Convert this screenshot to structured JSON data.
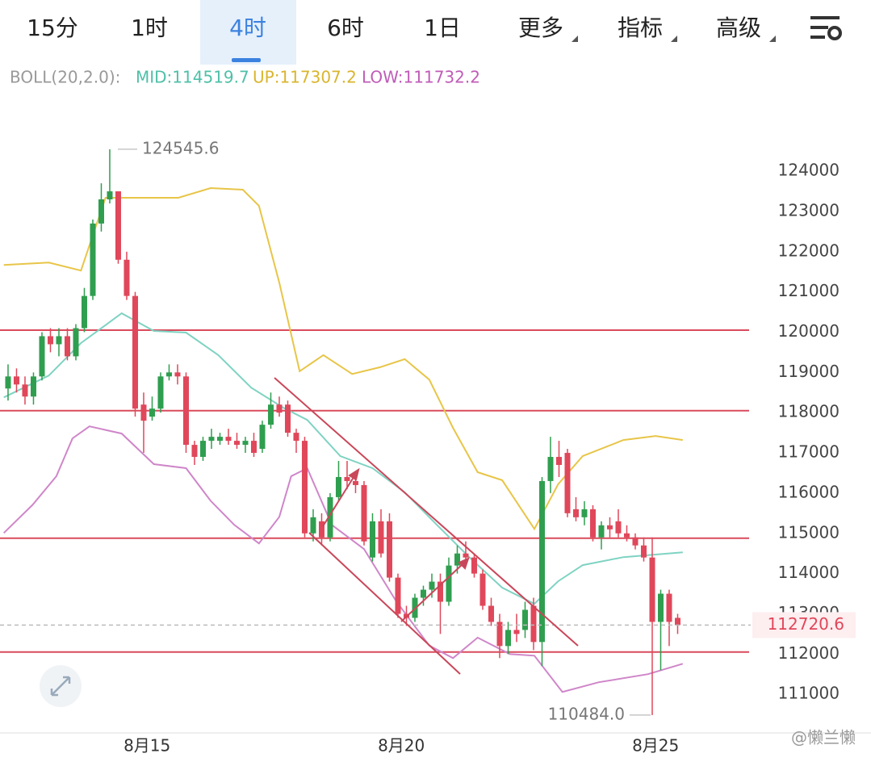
{
  "tabs": [
    "15分",
    "1时",
    "4时",
    "6时",
    "1日",
    "更多",
    "指标",
    "高级"
  ],
  "active_tab": 2,
  "legend": {
    "label": "BOLL(20,2.0):",
    "mid": "MID:114519.7",
    "up": "UP:117307.2",
    "low": "LOW:111732.2"
  },
  "watermark": "@懒兰懒",
  "chart_data": {
    "type": "candlestick",
    "up_color": "#2f9e4f",
    "down_color": "#e0475a",
    "xlim": [
      -0.95,
      87.43
    ],
    "xticks": [
      {
        "value": 16.4,
        "label": "8月15"
      },
      {
        "value": 46.4,
        "label": "8月20"
      },
      {
        "value": 76.4,
        "label": "8月25"
      }
    ],
    "ylim": [
      110000,
      126650
    ],
    "yticks": [
      124000,
      123000,
      122000,
      121000,
      120000,
      119000,
      118000,
      117000,
      116000,
      115000,
      114000,
      113000,
      112000,
      111000
    ],
    "candles": [
      [
        118600,
        119200,
        118300,
        118900
      ],
      [
        118900,
        119100,
        118500,
        118700
      ],
      [
        118700,
        118900,
        118200,
        118400
      ],
      [
        118400,
        119000,
        118200,
        118900
      ],
      [
        118900,
        120000,
        118800,
        119900
      ],
      [
        119900,
        120100,
        119500,
        119700
      ],
      [
        119700,
        120100,
        119400,
        119900
      ],
      [
        119900,
        120100,
        119300,
        119400
      ],
      [
        119400,
        120200,
        119300,
        120100
      ],
      [
        120100,
        121100,
        120000,
        120900
      ],
      [
        120900,
        122800,
        120800,
        122700
      ],
      [
        122700,
        123700,
        122500,
        123300
      ],
      [
        123300,
        124545.6,
        123200,
        123500
      ],
      [
        123500,
        123500,
        121700,
        121800
      ],
      [
        121800,
        122000,
        120800,
        120900
      ],
      [
        120900,
        121000,
        117900,
        118100
      ],
      [
        118200,
        118500,
        117000,
        117800
      ],
      [
        117900,
        118400,
        117800,
        118100
      ],
      [
        118100,
        119000,
        118000,
        118900
      ],
      [
        118900,
        119200,
        118800,
        119000
      ],
      [
        119000,
        119200,
        118700,
        118900
      ],
      [
        118900,
        119000,
        117000,
        117200
      ],
      [
        117200,
        117300,
        116700,
        116900
      ],
      [
        116900,
        117400,
        116800,
        117300
      ],
      [
        117300,
        117600,
        117100,
        117400
      ],
      [
        117300,
        117500,
        117200,
        117400
      ],
      [
        117400,
        117600,
        117200,
        117300
      ],
      [
        117300,
        117500,
        117100,
        117200
      ],
      [
        117200,
        117400,
        117000,
        117300
      ],
      [
        117300,
        117500,
        116900,
        117000
      ],
      [
        117100,
        117800,
        117000,
        117700
      ],
      [
        117700,
        118500,
        117600,
        118200
      ],
      [
        118200,
        118400,
        117900,
        118000
      ],
      [
        118200,
        118300,
        117400,
        117500
      ],
      [
        117500,
        117600,
        117000,
        117300
      ],
      [
        117300,
        117400,
        114900,
        115000
      ],
      [
        115000,
        115600,
        114800,
        115400
      ],
      [
        115300,
        115500,
        114700,
        114900
      ],
      [
        114900,
        116000,
        114800,
        115900
      ],
      [
        115900,
        116800,
        115800,
        116400
      ],
      [
        116400,
        116800,
        116100,
        116300
      ],
      [
        116300,
        116500,
        116000,
        116200
      ],
      [
        116200,
        116300,
        114700,
        114800
      ],
      [
        114400,
        115500,
        114300,
        115300
      ],
      [
        115300,
        115600,
        114400,
        114500
      ],
      [
        115300,
        115500,
        113800,
        113900
      ],
      [
        113900,
        114000,
        112900,
        113000
      ],
      [
        113000,
        113200,
        112700,
        112900
      ],
      [
        112900,
        113500,
        112800,
        113400
      ],
      [
        113400,
        113700,
        113200,
        113600
      ],
      [
        113600,
        114000,
        113400,
        113800
      ],
      [
        113800,
        114000,
        112500,
        113300
      ],
      [
        113300,
        114400,
        113200,
        114200
      ],
      [
        114200,
        114700,
        114000,
        114500
      ],
      [
        114500,
        114800,
        114200,
        114400
      ],
      [
        114400,
        114500,
        113900,
        114000
      ],
      [
        114000,
        114100,
        113100,
        113200
      ],
      [
        113200,
        113400,
        112700,
        112800
      ],
      [
        112800,
        113000,
        111900,
        112200
      ],
      [
        112200,
        112800,
        112000,
        112600
      ],
      [
        112600,
        113000,
        112300,
        112500
      ],
      [
        112600,
        113300,
        112400,
        113100
      ],
      [
        113200,
        113400,
        112100,
        112300
      ],
      [
        112300,
        116400,
        111700,
        116300
      ],
      [
        116300,
        117400,
        116000,
        116900
      ],
      [
        116900,
        117300,
        116400,
        116700
      ],
      [
        117000,
        117100,
        115400,
        115500
      ],
      [
        115600,
        115900,
        115300,
        115400
      ],
      [
        115400,
        115800,
        115200,
        115600
      ],
      [
        115600,
        115700,
        114800,
        114900
      ],
      [
        114900,
        115300,
        114600,
        115200
      ],
      [
        115200,
        115400,
        114900,
        115100
      ],
      [
        115300,
        115600,
        114900,
        115000
      ],
      [
        115000,
        115200,
        114800,
        114900
      ],
      [
        114900,
        115000,
        114600,
        114700
      ],
      [
        114700,
        114900,
        114300,
        114400
      ],
      [
        114400,
        114900,
        110484,
        112800
      ],
      [
        112800,
        113600,
        111600,
        113500
      ],
      [
        113500,
        113600,
        112200,
        112800
      ],
      [
        112900,
        113000,
        112500,
        112720.6
      ]
    ],
    "bands": [
      {
        "color": "#e8c548",
        "x": [
          -0.5,
          4.8,
          8.6,
          11.5,
          14.3,
          20.1,
          23.9,
          27.7,
          29.6,
          32.0,
          34.4,
          37.2,
          40.6,
          43.9,
          46.8,
          49.7,
          52.5,
          55.4,
          58.3,
          62.1,
          64.9,
          67.8,
          72.6,
          76.4,
          79.6
        ],
        "values": [
          121670,
          121730,
          121530,
          123340,
          123340,
          123340,
          123580,
          123540,
          123140,
          121230,
          119030,
          119430,
          118960,
          119130,
          119330,
          118820,
          117620,
          116520,
          116320,
          115110,
          116220,
          116920,
          117320,
          117420,
          117320
        ]
      },
      {
        "color": "#7fd3c3",
        "x": [
          -0.5,
          4.8,
          8.6,
          13.4,
          17.2,
          21.0,
          24.8,
          28.7,
          32.5,
          35.3,
          39.2,
          43.0,
          46.8,
          50.6,
          54.4,
          58.3,
          62.1,
          64.9,
          67.8,
          72.6,
          79.6
        ],
        "values": [
          118380,
          118920,
          119730,
          120470,
          120030,
          119990,
          119430,
          118620,
          118120,
          117820,
          116920,
          116620,
          116020,
          115210,
          114410,
          113650,
          113250,
          113810,
          114210,
          114410,
          114530
        ]
      },
      {
        "color": "#cf86c9",
        "x": [
          -0.5,
          2.9,
          5.7,
          7.6,
          9.6,
          13.4,
          17.2,
          21.0,
          23.9,
          26.7,
          29.6,
          32.0,
          33.4,
          35.3,
          38.2,
          42.0,
          45.8,
          49.7,
          52.5,
          55.4,
          59.2,
          62.1,
          65.4,
          69.7,
          75.5,
          79.6
        ],
        "values": [
          115010,
          115710,
          116420,
          117360,
          117660,
          117480,
          116720,
          116620,
          115810,
          115210,
          114750,
          115410,
          116420,
          116620,
          115210,
          114610,
          113310,
          112210,
          111900,
          112410,
          112000,
          111960,
          111060,
          111300,
          111500,
          111760
        ]
      }
    ],
    "hlines": [
      120050,
      118050,
      114880,
      112050
    ],
    "hline_color": "#d94b5c",
    "high_label": {
      "value": 124545.6,
      "label": "124545.6"
    },
    "low_label": {
      "value": 110484,
      "label": "110484.0"
    },
    "last_price": 112720.6
  }
}
